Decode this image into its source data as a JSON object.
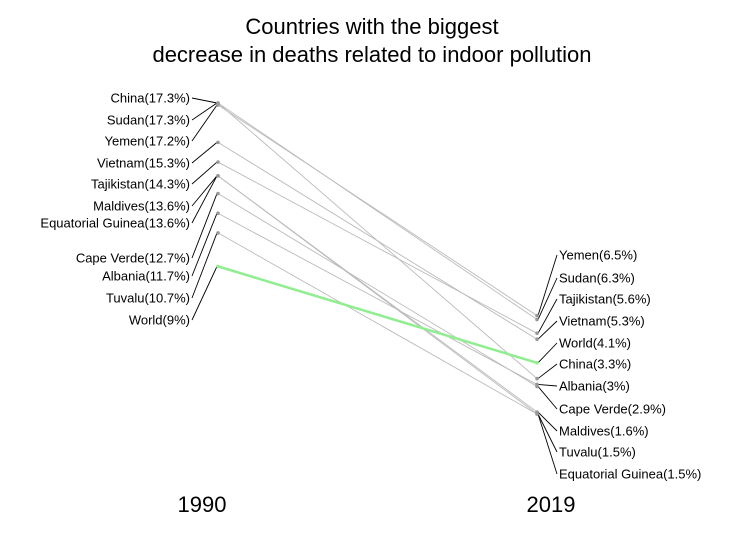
{
  "chart_data": {
    "type": "line",
    "title_lines": [
      "Countries with the biggest",
      "decrease in deaths related to indoor pollution"
    ],
    "x_categories": [
      "1990",
      "2019"
    ],
    "highlight_color": "#90ee90",
    "line_color": "#bbbbbb",
    "series": [
      {
        "name": "China",
        "values": [
          17.3,
          3.3
        ]
      },
      {
        "name": "Sudan",
        "values": [
          17.3,
          6.3
        ]
      },
      {
        "name": "Yemen",
        "values": [
          17.2,
          6.5
        ]
      },
      {
        "name": "Vietnam",
        "values": [
          15.3,
          5.3
        ]
      },
      {
        "name": "Tajikistan",
        "values": [
          14.3,
          5.6
        ]
      },
      {
        "name": "Maldives",
        "values": [
          13.6,
          1.6
        ]
      },
      {
        "name": "Equatorial Guinea",
        "values": [
          13.6,
          1.5
        ]
      },
      {
        "name": "Cape Verde",
        "values": [
          12.7,
          2.9
        ]
      },
      {
        "name": "Albania",
        "values": [
          11.7,
          3.0
        ]
      },
      {
        "name": "Tuvalu",
        "values": [
          10.7,
          1.5
        ]
      },
      {
        "name": "World",
        "values": [
          9.0,
          4.1
        ],
        "highlight": true
      }
    ],
    "left_labels": [
      "China(17.3%)",
      "Sudan(17.3%)",
      "Yemen(17.2%)",
      "Vietnam(15.3%)",
      "Tajikistan(14.3%)",
      "Maldives(13.6%)",
      "Equatorial Guinea(13.6%)",
      "Cape Verde(12.7%)",
      "Albania(11.7%)",
      "Tuvalu(10.7%)",
      "World(9%)"
    ],
    "right_labels": [
      "Yemen(6.5%)",
      "Sudan(6.3%)",
      "Tajikistan(5.6%)",
      "Vietnam(5.3%)",
      "World(4.1%)",
      "China(3.3%)",
      "Albania(3%)",
      "Cape Verde(2.9%)",
      "Maldives(1.6%)",
      "Tuvalu(1.5%)",
      "Equatorial Guinea(1.5%)"
    ],
    "left_label_series": [
      "China",
      "Sudan",
      "Yemen",
      "Vietnam",
      "Tajikistan",
      "Maldives",
      "Equatorial Guinea",
      "Cape Verde",
      "Albania",
      "Tuvalu",
      "World"
    ],
    "right_label_series": [
      "Yemen",
      "Sudan",
      "Tajikistan",
      "Vietnam",
      "World",
      "China",
      "Albania",
      "Cape Verde",
      "Maldives",
      "Tuvalu",
      "Equatorial Guinea"
    ]
  }
}
